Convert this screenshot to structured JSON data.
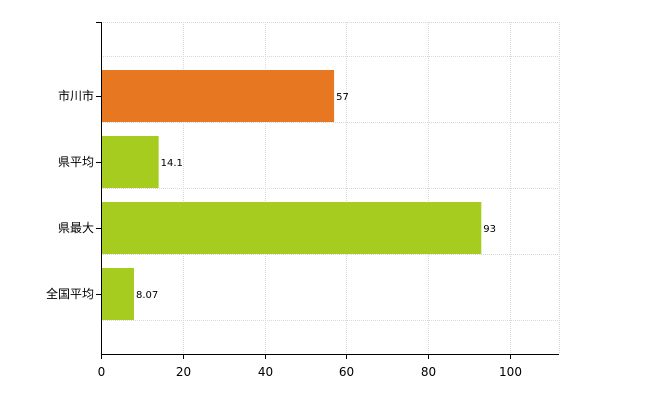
{
  "chart_data": {
    "type": "bar",
    "orientation": "horizontal",
    "categories": [
      "市川市",
      "県平均",
      "県最大",
      "全国平均"
    ],
    "values": [
      57,
      14.1,
      93,
      8.07
    ],
    "data_labels": [
      "57",
      "14.1",
      "93",
      "8.07"
    ],
    "bar_colors": [
      "#e87722",
      "#a6cc1f",
      "#a6cc1f",
      "#a6cc1f"
    ],
    "xlim": [
      0,
      112
    ],
    "x_ticks": [
      0,
      20,
      40,
      60,
      80,
      100
    ],
    "grid": true,
    "legend": "none",
    "title": "",
    "xlabel": "",
    "ylabel": ""
  }
}
